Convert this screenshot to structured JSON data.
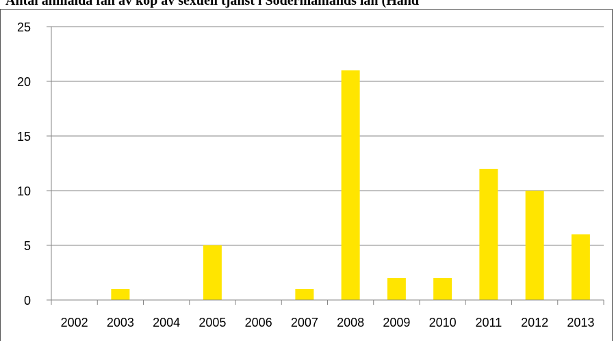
{
  "title": "Antal anmälda fall av köp av sexuell tjänst i Södermanlands län (Hand",
  "colors": {
    "bar": "#FFE500",
    "grid": "#868686",
    "axis": "#868686"
  },
  "chart_data": {
    "type": "bar",
    "title": "Antal anmälda fall av köp av sexuell tjänst i Södermanlands län (Hand",
    "xlabel": "",
    "ylabel": "",
    "categories": [
      "2002",
      "2003",
      "2004",
      "2005",
      "2006",
      "2007",
      "2008",
      "2009",
      "2010",
      "2011",
      "2012",
      "2013"
    ],
    "values": [
      0,
      1,
      0,
      5,
      0,
      1,
      21,
      2,
      2,
      12,
      10,
      6
    ],
    "ylim": [
      0,
      25
    ],
    "yticks": [
      0,
      5,
      10,
      15,
      20,
      25
    ],
    "grid": true,
    "legend": "none"
  }
}
